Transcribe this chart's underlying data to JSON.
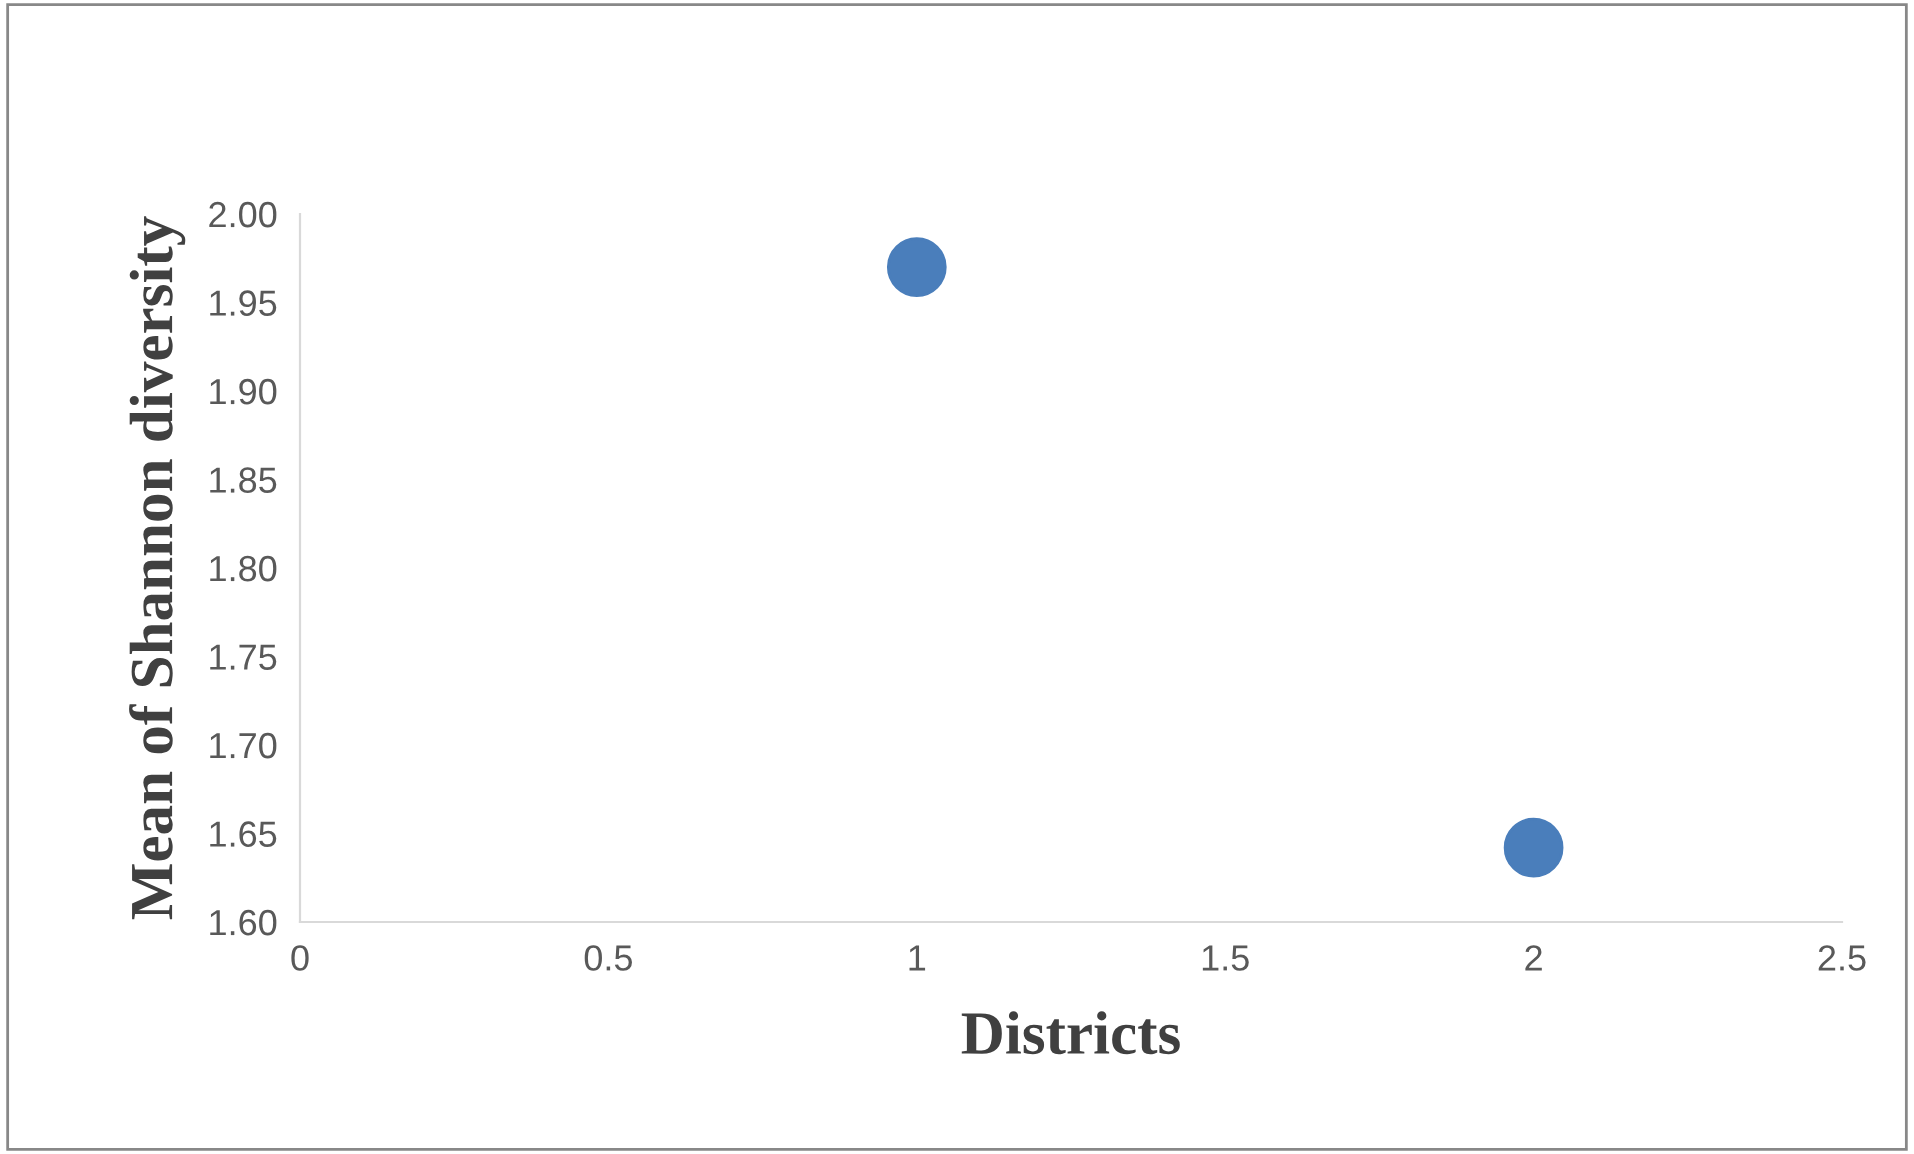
{
  "chart_data": {
    "type": "scatter",
    "xlabel": "Districts",
    "ylabel": "Mean of Shannon diversity",
    "x": [
      1,
      2
    ],
    "series": [
      {
        "color": "#4a7ebb",
        "values": [
          1.97,
          1.642
        ]
      }
    ],
    "xlim": [
      0,
      2.5
    ],
    "xticks": [
      0,
      {
        "value": 0.5,
        "label": "0.5"
      },
      1,
      {
        "value": 1.5,
        "label": "1.5"
      },
      2,
      {
        "value": 2.5,
        "label": "2.5"
      }
    ],
    "ylim": [
      1.6,
      2.0
    ],
    "yticks": [
      {
        "value": 1.6,
        "label": "1.60"
      },
      {
        "value": 1.65,
        "label": "1.65"
      },
      {
        "value": 1.7,
        "label": "1.70"
      },
      {
        "value": 1.75,
        "label": "1.75"
      },
      {
        "value": 1.8,
        "label": "1.80"
      },
      {
        "value": 1.85,
        "label": "1.85"
      },
      {
        "value": 1.9,
        "label": "1.90"
      },
      {
        "value": 1.95,
        "label": "1.95"
      },
      {
        "value": 2.0,
        "label": "2.00"
      }
    ],
    "grid": false,
    "marker": "circle",
    "legend": false
  }
}
